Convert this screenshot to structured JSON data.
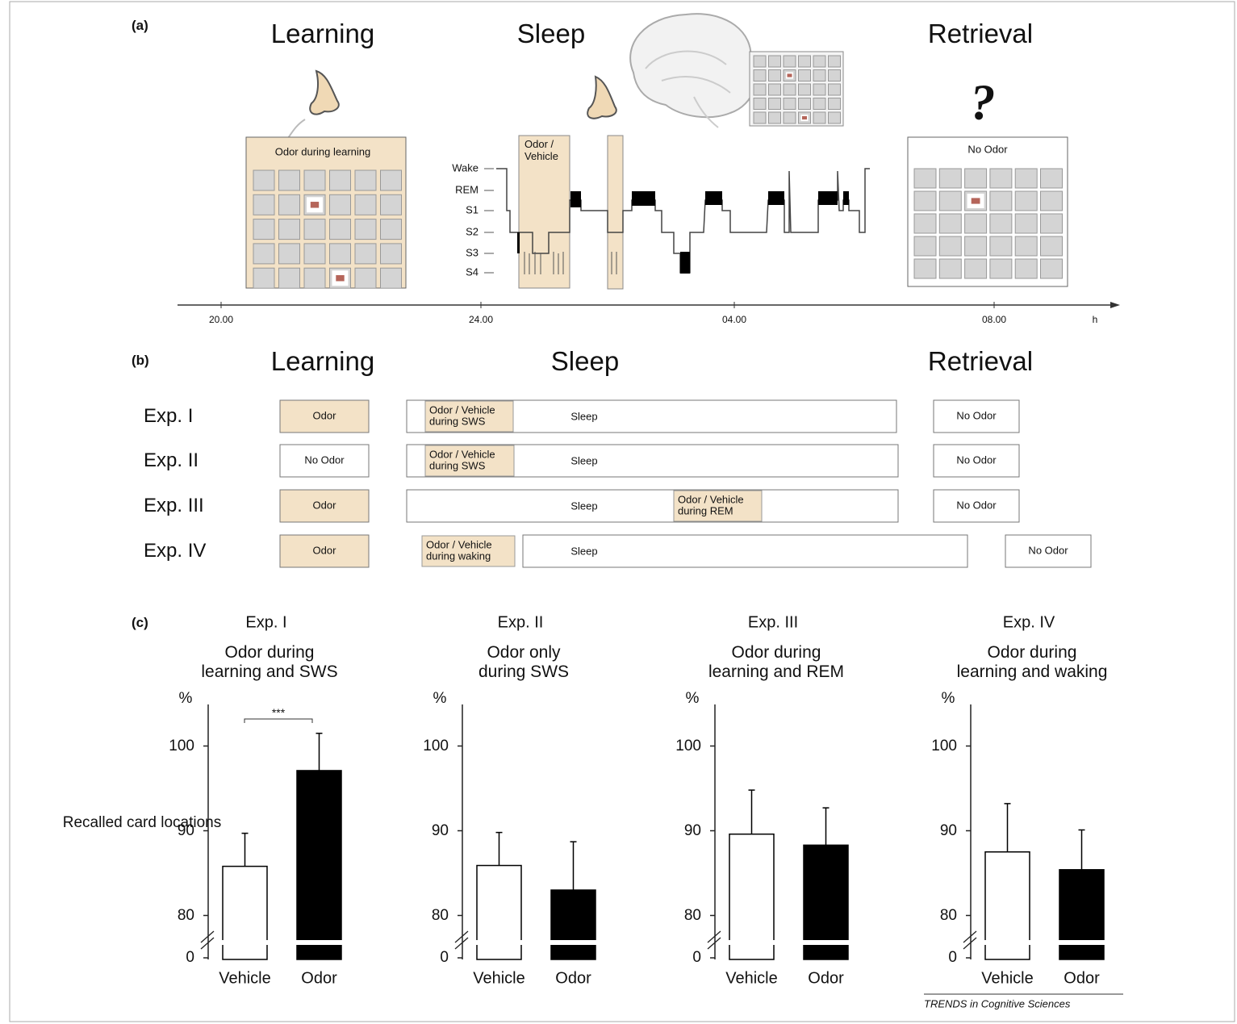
{
  "panel_a": {
    "label": "(a)",
    "headings": [
      "Learning",
      "Sleep",
      "Retrieval"
    ],
    "learning_box": "Odor during learning",
    "stimulus_box": "Odor /\nVehicle",
    "sleep_stages": [
      "Wake",
      "REM",
      "S1",
      "S2",
      "S3",
      "S4"
    ],
    "retrieval_box": "No Odor",
    "question_mark": "?",
    "time_labels": [
      "20.00",
      "24.00",
      "04.00",
      "08.00"
    ],
    "time_unit": "h"
  },
  "panel_b": {
    "label": "(b)",
    "headings": [
      "Learning",
      "Sleep",
      "Retrieval"
    ],
    "rows": [
      {
        "label": "Exp. I",
        "learning": "Odor",
        "learning_color": "#f3e2c7",
        "stimulus": "Odor / Vehicle\nduring SWS",
        "sleep": "Sleep",
        "retrieval": "No Odor"
      },
      {
        "label": "Exp. II",
        "learning": "No Odor",
        "learning_color": "#ffffff",
        "stimulus": "Odor / Vehicle\nduring SWS",
        "sleep": "Sleep",
        "retrieval": "No Odor"
      },
      {
        "label": "Exp. III",
        "learning": "Odor",
        "learning_color": "#f3e2c7",
        "stimulus": "Odor / Vehicle\nduring REM",
        "sleep": "Sleep",
        "retrieval": "No Odor"
      },
      {
        "label": "Exp. IV",
        "learning": "Odor",
        "learning_color": "#f3e2c7",
        "stimulus": "Odor / Vehicle\nduring waking",
        "sleep": "Sleep",
        "retrieval": "No Odor"
      }
    ]
  },
  "panel_c": {
    "label": "(c)"
  },
  "chart_data": [
    {
      "type": "bar",
      "title": "Exp. I",
      "subtitle": "Odor during\nlearning and SWS",
      "ylabel": "Recalled card locations",
      "yunit": "%",
      "categories": [
        "Vehicle",
        "Odor"
      ],
      "values": [
        85.8,
        97.1
      ],
      "errors": [
        3.9,
        4.4
      ],
      "colors": [
        "#ffffff",
        "#000000"
      ],
      "ylim": [
        75,
        105
      ],
      "yticks": [
        0,
        80,
        90,
        100
      ],
      "axis_break": true,
      "significance": "***"
    },
    {
      "type": "bar",
      "title": "Exp. II",
      "subtitle": "Odor only\nduring SWS",
      "yunit": "%",
      "categories": [
        "Vehicle",
        "Odor"
      ],
      "values": [
        85.9,
        83.0
      ],
      "errors": [
        3.9,
        5.7
      ],
      "colors": [
        "#ffffff",
        "#000000"
      ],
      "ylim": [
        75,
        105
      ],
      "yticks": [
        0,
        80,
        90,
        100
      ],
      "axis_break": true
    },
    {
      "type": "bar",
      "title": "Exp. III",
      "subtitle": "Odor during\nlearning and REM",
      "yunit": "%",
      "categories": [
        "Vehicle",
        "Odor"
      ],
      "values": [
        89.6,
        88.3
      ],
      "errors": [
        5.2,
        4.4
      ],
      "colors": [
        "#ffffff",
        "#000000"
      ],
      "ylim": [
        75,
        105
      ],
      "yticks": [
        0,
        80,
        90,
        100
      ],
      "axis_break": true
    },
    {
      "type": "bar",
      "title": "Exp. IV",
      "subtitle": "Odor during\nlearning and waking",
      "yunit": "%",
      "categories": [
        "Vehicle",
        "Odor"
      ],
      "values": [
        87.5,
        85.4
      ],
      "errors": [
        5.7,
        4.7
      ],
      "colors": [
        "#ffffff",
        "#000000"
      ],
      "ylim": [
        75,
        105
      ],
      "yticks": [
        0,
        80,
        90,
        100
      ],
      "axis_break": true
    }
  ],
  "source": "TRENDS in Cognitive Sciences"
}
